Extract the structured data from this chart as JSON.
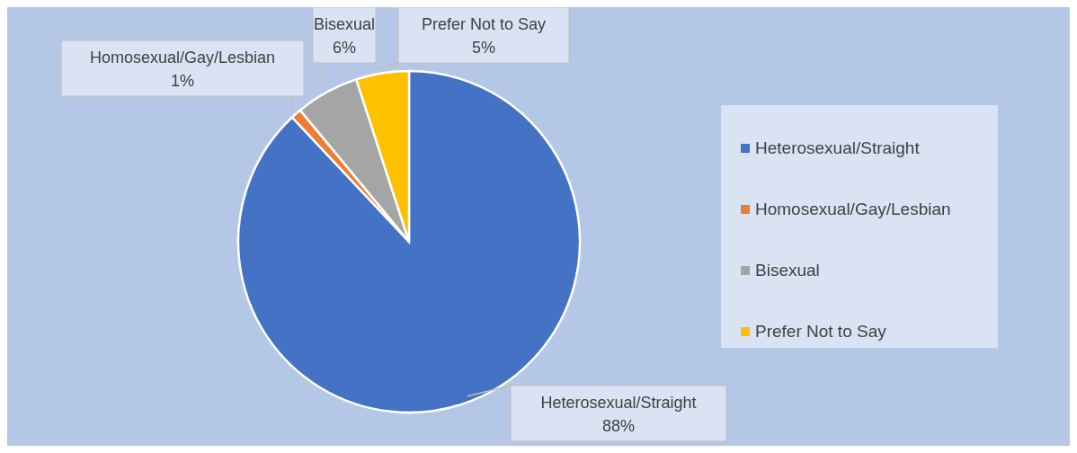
{
  "chart_data": {
    "type": "pie",
    "categories": [
      "Heterosexual/Straight",
      "Homosexual/Gay/Lesbian",
      "Bisexual",
      "Prefer Not to Say"
    ],
    "values": [
      88,
      1,
      6,
      5
    ],
    "value_labels": [
      "88%",
      "1%",
      "6%",
      "5%"
    ],
    "colors": [
      "#4472c4",
      "#ed7d31",
      "#a5a5a5",
      "#ffc000"
    ],
    "legend": "right"
  }
}
